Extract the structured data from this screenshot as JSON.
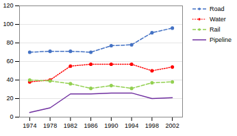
{
  "chart_data": {
    "type": "line",
    "x": [
      1974,
      1978,
      1982,
      1986,
      1990,
      1994,
      1998,
      2002
    ],
    "series": [
      {
        "name": "Road",
        "color": "#4472C4",
        "values": [
          70,
          71,
          71,
          70,
          77,
          78,
          91,
          96
        ],
        "line_style": "dashed",
        "marker": "circle"
      },
      {
        "name": "Water",
        "color": "#FF0000",
        "values": [
          38,
          40,
          55,
          57,
          57,
          57,
          50,
          54
        ],
        "line_style": "dotted",
        "marker": "circle"
      },
      {
        "name": "Rail",
        "color": "#92D050",
        "values": [
          40,
          39,
          36,
          31,
          34,
          31,
          37,
          38
        ],
        "line_style": "dashed",
        "marker": "circle"
      },
      {
        "name": "Pipeline",
        "color": "#7030A0",
        "values": [
          5,
          10,
          25,
          25,
          26,
          26,
          20,
          21
        ],
        "line_style": "solid",
        "marker": "none"
      }
    ],
    "xlim": [
      1972,
      2004
    ],
    "xticks": [
      1974,
      1978,
      1982,
      1986,
      1990,
      1994,
      1998,
      2002
    ],
    "ylim": [
      0,
      120
    ],
    "yticks": [
      0,
      20,
      40,
      60,
      80,
      100,
      120
    ],
    "grid": "y",
    "legend": "right"
  }
}
